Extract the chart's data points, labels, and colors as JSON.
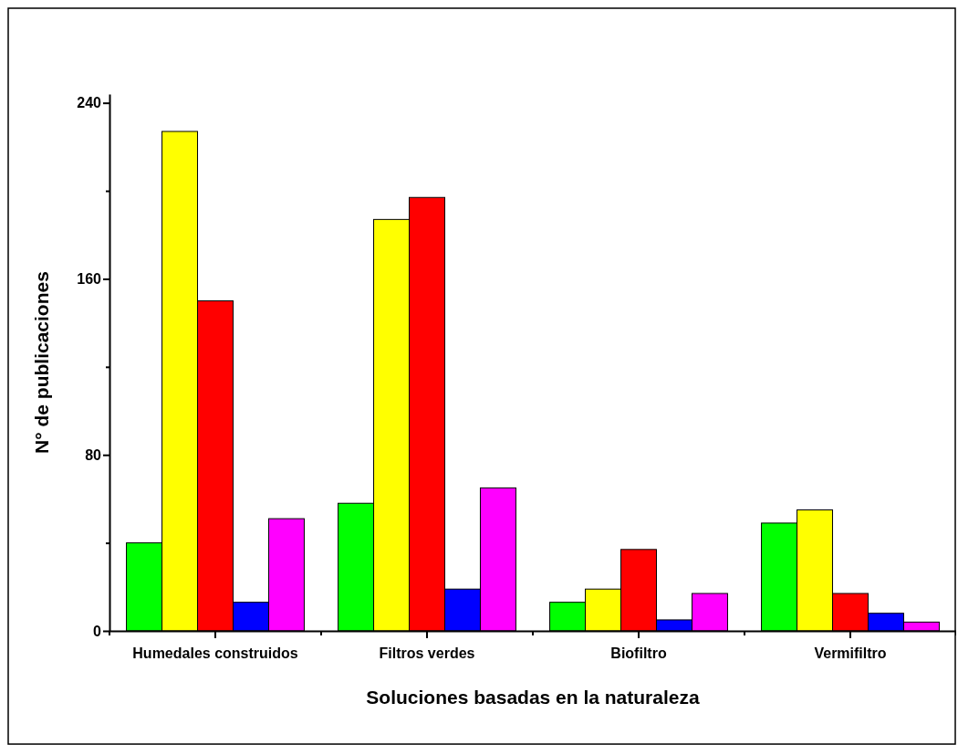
{
  "chart_data": {
    "type": "bar",
    "xlabel": "Soluciones basadas en la naturaleza",
    "ylabel": "N° de publicaciones",
    "categories": [
      "Humedales construidos",
      "Filtros verdes",
      "Biofiltro",
      "Vermifiltro"
    ],
    "series": [
      {
        "color": "#00ff00",
        "values": [
          40,
          58,
          13,
          49
        ]
      },
      {
        "color": "#ffff00",
        "values": [
          227,
          187,
          19,
          55
        ]
      },
      {
        "color": "#ff0000",
        "values": [
          150,
          197,
          37,
          17
        ]
      },
      {
        "color": "#0000ff",
        "values": [
          13,
          19,
          5,
          8
        ]
      },
      {
        "color": "#ff00ff",
        "values": [
          51,
          65,
          17,
          4
        ]
      }
    ],
    "ylim": [
      0,
      244
    ],
    "yticks": [
      0,
      {
        "value": 40,
        "label": null
      },
      80,
      {
        "value": 120,
        "label": null
      },
      160,
      {
        "value": 200,
        "label": null
      },
      240
    ]
  }
}
